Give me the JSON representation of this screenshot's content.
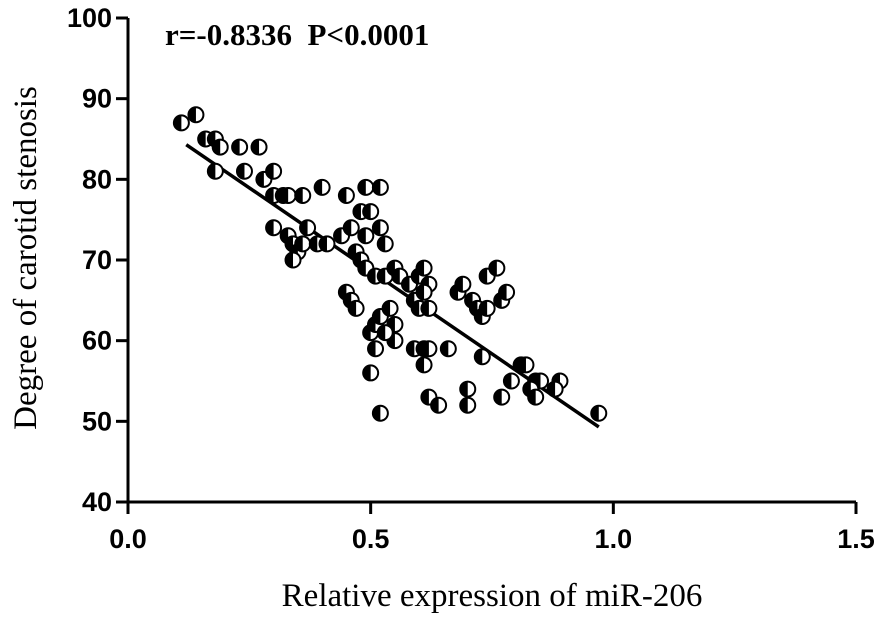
{
  "chart_data": {
    "type": "scatter",
    "xlabel": "Relative expression of miR-206",
    "ylabel": "Degree of carotid stenosis",
    "annotation": "r=-0.8336  P<0.0001",
    "xlim": [
      0.0,
      1.5
    ],
    "ylim": [
      40,
      100
    ],
    "x_ticks": [
      "0.0",
      "0.5",
      "1.0",
      "1.5"
    ],
    "y_ticks": [
      "40",
      "50",
      "60",
      "70",
      "80",
      "90",
      "100"
    ],
    "grid": false,
    "regression_line": {
      "x": [
        0.12,
        0.97
      ],
      "y": [
        84.3,
        49.3
      ]
    },
    "points": [
      [
        0.11,
        87
      ],
      [
        0.14,
        88
      ],
      [
        0.16,
        85
      ],
      [
        0.18,
        85
      ],
      [
        0.19,
        84
      ],
      [
        0.18,
        81
      ],
      [
        0.23,
        84
      ],
      [
        0.27,
        84
      ],
      [
        0.24,
        81
      ],
      [
        0.28,
        80
      ],
      [
        0.3,
        81
      ],
      [
        0.3,
        78
      ],
      [
        0.32,
        78
      ],
      [
        0.33,
        78
      ],
      [
        0.36,
        78
      ],
      [
        0.4,
        79
      ],
      [
        0.3,
        74
      ],
      [
        0.33,
        73
      ],
      [
        0.34,
        72
      ],
      [
        0.35,
        71
      ],
      [
        0.34,
        70
      ],
      [
        0.36,
        72
      ],
      [
        0.37,
        74
      ],
      [
        0.39,
        72
      ],
      [
        0.41,
        72
      ],
      [
        0.44,
        73
      ],
      [
        0.46,
        74
      ],
      [
        0.45,
        78
      ],
      [
        0.49,
        79
      ],
      [
        0.52,
        79
      ],
      [
        0.48,
        76
      ],
      [
        0.5,
        76
      ],
      [
        0.49,
        73
      ],
      [
        0.52,
        74
      ],
      [
        0.53,
        72
      ],
      [
        0.47,
        71
      ],
      [
        0.48,
        70
      ],
      [
        0.49,
        69
      ],
      [
        0.51,
        68
      ],
      [
        0.53,
        68
      ],
      [
        0.55,
        69
      ],
      [
        0.56,
        68
      ],
      [
        0.58,
        67
      ],
      [
        0.6,
        68
      ],
      [
        0.61,
        69
      ],
      [
        0.62,
        67
      ],
      [
        0.59,
        65
      ],
      [
        0.6,
        64
      ],
      [
        0.61,
        66
      ],
      [
        0.62,
        64
      ],
      [
        0.45,
        66
      ],
      [
        0.46,
        65
      ],
      [
        0.47,
        64
      ],
      [
        0.5,
        61
      ],
      [
        0.51,
        62
      ],
      [
        0.52,
        63
      ],
      [
        0.54,
        64
      ],
      [
        0.55,
        62
      ],
      [
        0.51,
        59
      ],
      [
        0.55,
        60
      ],
      [
        0.53,
        61
      ],
      [
        0.59,
        59
      ],
      [
        0.61,
        59
      ],
      [
        0.62,
        59
      ],
      [
        0.66,
        59
      ],
      [
        0.68,
        66
      ],
      [
        0.69,
        67
      ],
      [
        0.71,
        65
      ],
      [
        0.72,
        64
      ],
      [
        0.73,
        63
      ],
      [
        0.74,
        68
      ],
      [
        0.76,
        69
      ],
      [
        0.77,
        65
      ],
      [
        0.78,
        66
      ],
      [
        0.74,
        64
      ],
      [
        0.73,
        58
      ],
      [
        0.79,
        55
      ],
      [
        0.81,
        57
      ],
      [
        0.82,
        57
      ],
      [
        0.84,
        55
      ],
      [
        0.85,
        55
      ],
      [
        0.83,
        54
      ],
      [
        0.84,
        53
      ],
      [
        0.89,
        55
      ],
      [
        0.88,
        54
      ],
      [
        0.61,
        57
      ],
      [
        0.5,
        56
      ],
      [
        0.7,
        54
      ],
      [
        0.7,
        52
      ],
      [
        0.77,
        53
      ],
      [
        0.62,
        53
      ],
      [
        0.64,
        52
      ],
      [
        0.52,
        51
      ],
      [
        0.97,
        51
      ]
    ]
  }
}
